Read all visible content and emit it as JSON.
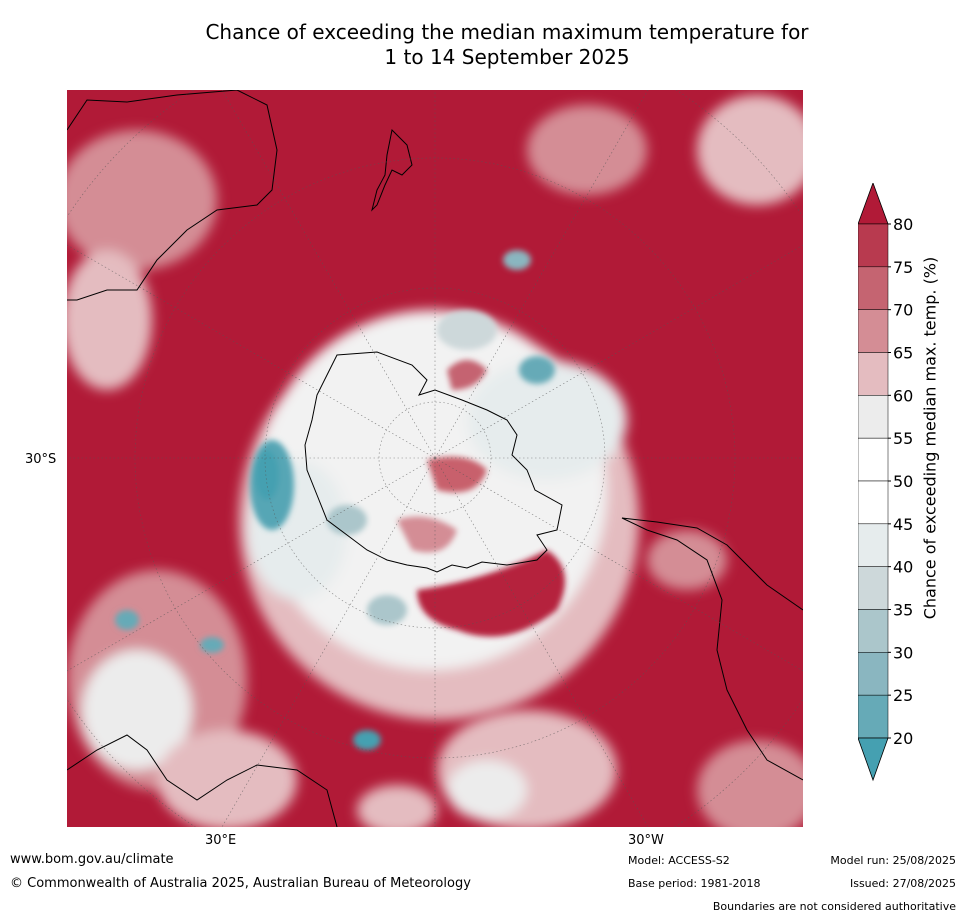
{
  "title": {
    "line1": "Chance of exceeding the median maximum temperature for",
    "line2": "1 to 14 September 2025"
  },
  "axis_labels": {
    "lat_left": "30°S",
    "lon_bottom_left": "30°E",
    "lon_bottom_right": "30°W"
  },
  "colorbar": {
    "title": "Chance of exceeding median max. temp. (%)",
    "ticks": [
      "80",
      "75",
      "70",
      "65",
      "60",
      "55",
      "50",
      "45",
      "40",
      "35",
      "30",
      "25",
      "20"
    ],
    "colors_top_to_bottom": [
      "#b5223d",
      "#b83a4f",
      "#c56471",
      "#d48d95",
      "#e4bcc0",
      "#ececec",
      "#ffffff",
      "#ffffff",
      "#e6eced",
      "#cdd8da",
      "#abc6cb",
      "#8ab6c0",
      "#66aab7",
      "#45a0b1"
    ],
    "over_color": "#b11a37",
    "under_color": "#45a0b1"
  },
  "map_colors": {
    "warm": "#b11a37",
    "warm_mid": "#c8606c",
    "warm_light": "#e4bcc0",
    "neutral": "#f2f2f2",
    "cool_light": "#cfdde0",
    "cool": "#56a6b5",
    "land_line": "#000000"
  },
  "footer": {
    "website": "www.bom.gov.au/climate",
    "copyright": "© Commonwealth of Australia 2025, Australian Bureau of Meteorology",
    "model": "Model: ACCESS-S2",
    "base_period": "Base period: 1981-2018",
    "model_run": "Model run: 25/08/2025",
    "issued": "Issued: 27/08/2025",
    "disclaimer": "Boundaries are not considered authoritative"
  }
}
